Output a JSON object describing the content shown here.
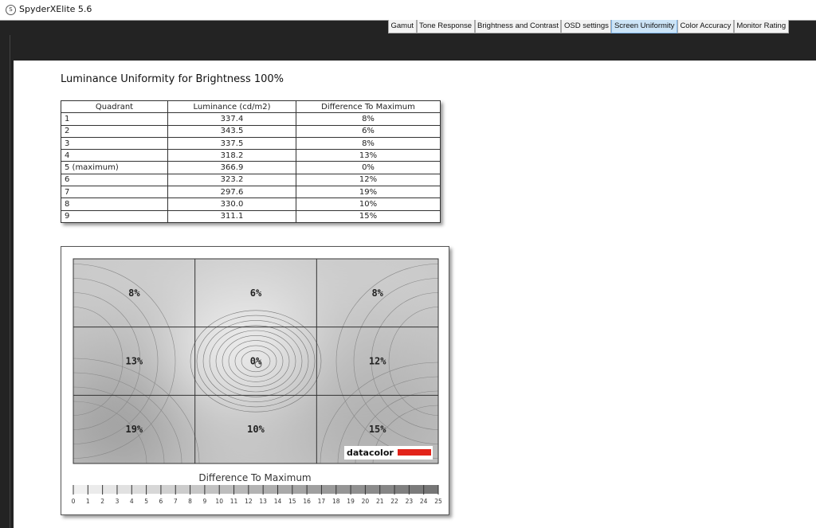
{
  "window": {
    "title": "SpyderXElite 5.6",
    "icon": "spyder-s-icon"
  },
  "tabs": [
    {
      "label": "Gamut"
    },
    {
      "label": "Tone Response"
    },
    {
      "label": "Brightness and Contrast"
    },
    {
      "label": "OSD settings"
    },
    {
      "label": "Screen Uniformity",
      "active": true
    },
    {
      "label": "Color Accuracy"
    },
    {
      "label": "Monitor Rating"
    }
  ],
  "page_title": "Luminance Uniformity for Brightness 100%",
  "table": {
    "headers": [
      "Quadrant",
      "Luminance (cd/m2)",
      "Difference To Maximum"
    ],
    "rows": [
      [
        "1",
        "337.4",
        "8%"
      ],
      [
        "2",
        "343.5",
        "6%"
      ],
      [
        "3",
        "337.5",
        "8%"
      ],
      [
        "4",
        "318.2",
        "13%"
      ],
      [
        "5 (maximum)",
        "366.9",
        "0%"
      ],
      [
        "6",
        "323.2",
        "12%"
      ],
      [
        "7",
        "297.6",
        "19%"
      ],
      [
        "8",
        "330.0",
        "10%"
      ],
      [
        "9",
        "311.1",
        "15%"
      ]
    ]
  },
  "heatmap": {
    "labels": [
      "8%",
      "6%",
      "8%",
      "13%",
      "0%",
      "12%",
      "19%",
      "10%",
      "15%"
    ],
    "values": [
      8,
      6,
      8,
      13,
      0,
      12,
      19,
      10,
      15
    ],
    "logo": "datacolor",
    "logo_color": "#e2231a"
  },
  "legend": {
    "title": "Difference To Maximum",
    "ticks": [
      "0",
      "1",
      "2",
      "3",
      "4",
      "5",
      "6",
      "7",
      "8",
      "9",
      "10",
      "11",
      "12",
      "13",
      "14",
      "15",
      "16",
      "17",
      "18",
      "19",
      "20",
      "21",
      "22",
      "23",
      "24",
      "25"
    ],
    "range": [
      0,
      25
    ]
  }
}
